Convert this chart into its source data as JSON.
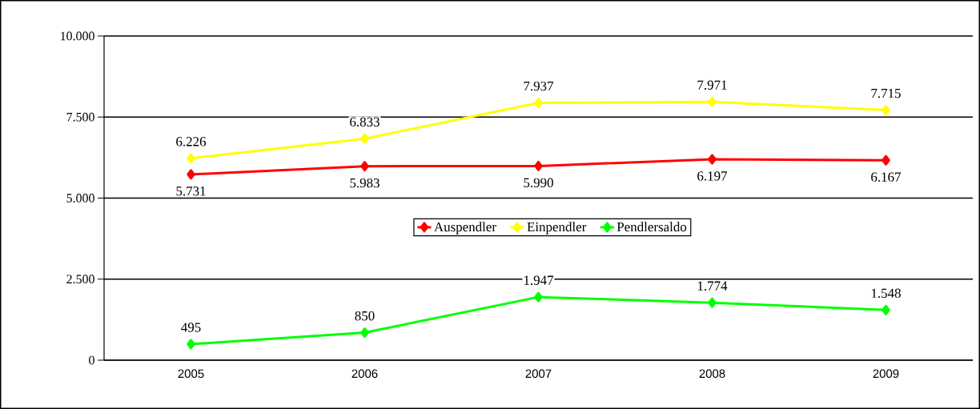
{
  "chart_data": {
    "type": "line",
    "categories": [
      "2005",
      "2006",
      "2007",
      "2008",
      "2009"
    ],
    "series": [
      {
        "name": "Auspendler",
        "color": "#ff0000",
        "values": [
          5731,
          5983,
          5990,
          6197,
          6167
        ],
        "value_labels": [
          "5.731",
          "5.983",
          "5.990",
          "6.197",
          "6.167"
        ]
      },
      {
        "name": "Einpendler",
        "color": "#ffff00",
        "values": [
          6226,
          6833,
          7937,
          7971,
          7715
        ],
        "value_labels": [
          "6.226",
          "6.833",
          "7.937",
          "7.971",
          "7.715"
        ]
      },
      {
        "name": "Pendlersaldo",
        "color": "#00ff00",
        "values": [
          495,
          850,
          1947,
          1774,
          1548
        ],
        "value_labels": [
          "495",
          "850",
          "1.947",
          "1.774",
          "1.548"
        ]
      }
    ],
    "ylim": [
      0,
      10000
    ],
    "yticks": [
      0,
      {
        "value": 2500,
        "label": "2.500"
      },
      {
        "value": 5000,
        "label": "5.000"
      },
      {
        "value": 7500,
        "label": "7.500"
      },
      {
        "value": 10000,
        "label": "10.000"
      }
    ],
    "grid": "y",
    "legend": "center",
    "marker": "diamond",
    "line_style": "solid"
  }
}
